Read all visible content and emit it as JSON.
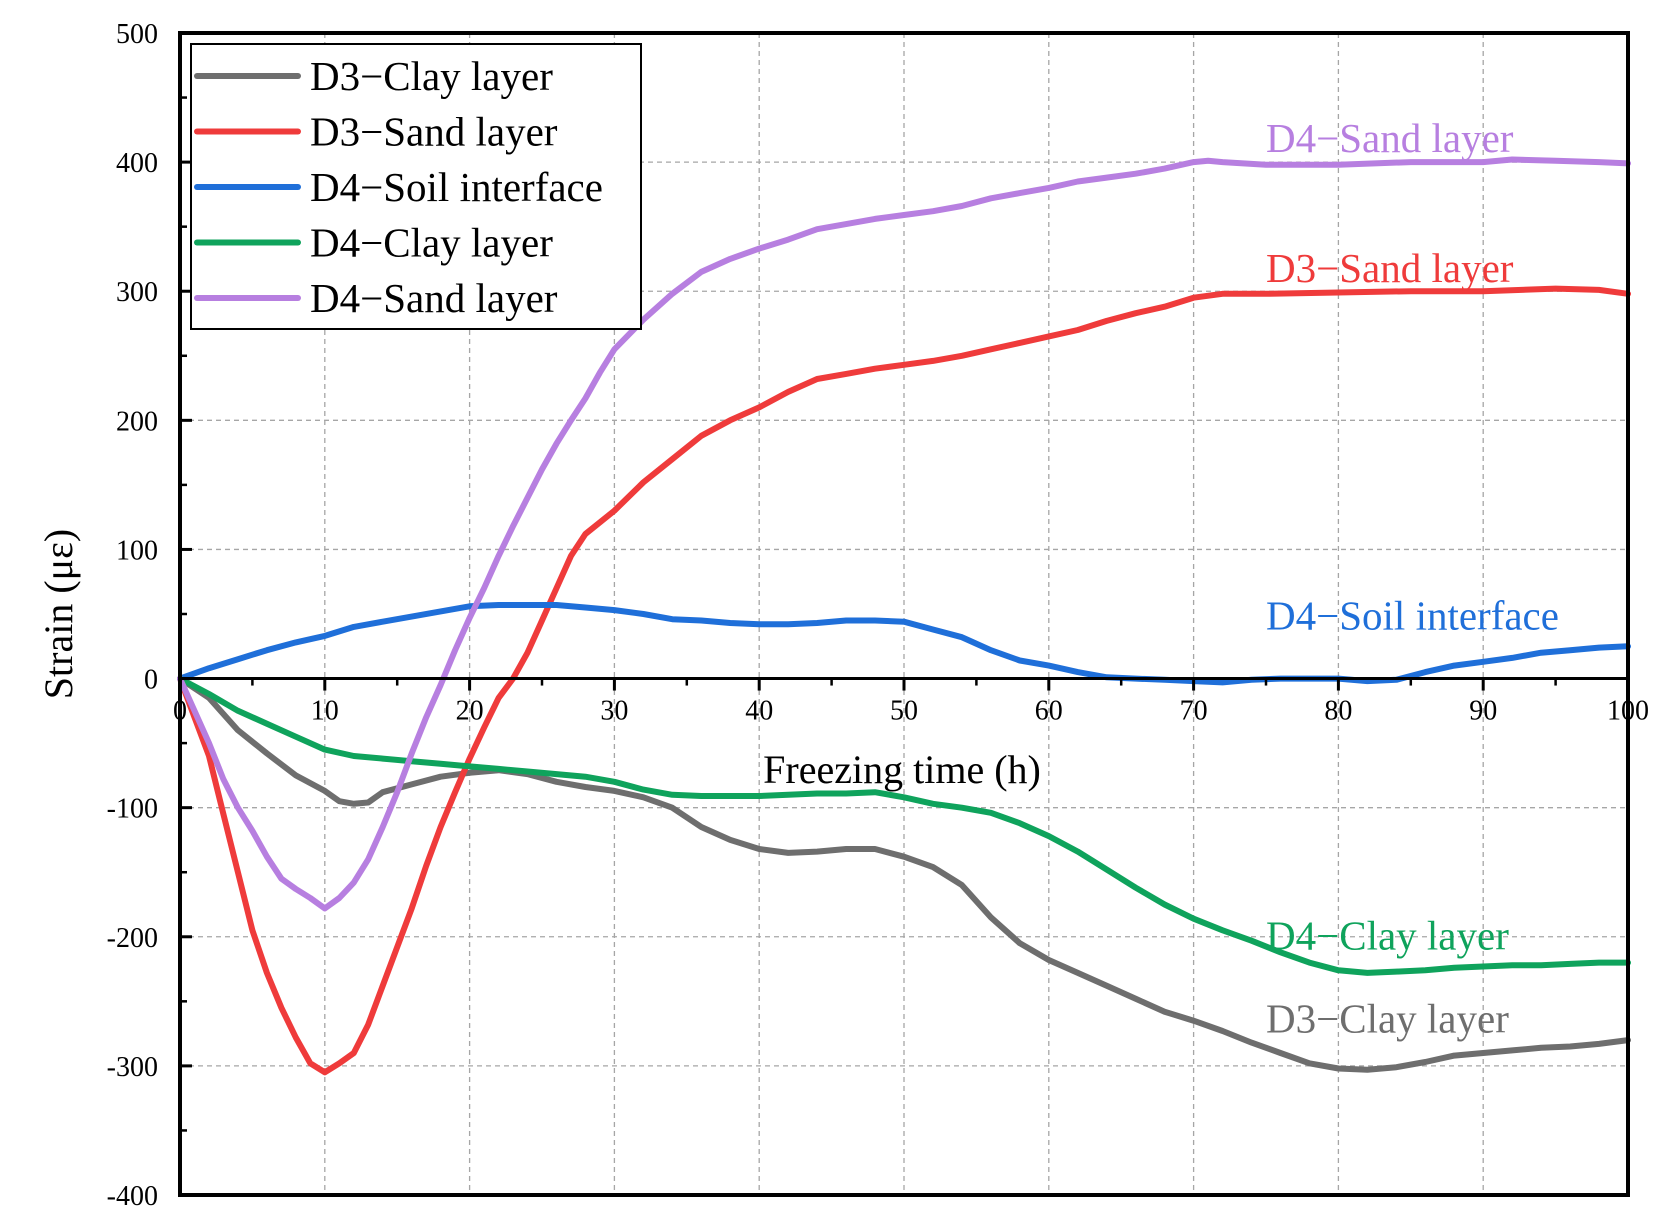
{
  "chart_data": {
    "type": "line",
    "title": "",
    "xlabel": "Freezing time (h)",
    "ylabel": "Strain (με)",
    "xlim": [
      0,
      100
    ],
    "ylim": [
      -400,
      500
    ],
    "xticks": [
      0,
      10,
      20,
      30,
      40,
      50,
      60,
      70,
      80,
      90,
      100
    ],
    "yticks": [
      -400,
      -300,
      -200,
      -100,
      0,
      100,
      200,
      300,
      400,
      500
    ],
    "xtick_labels": [
      "0",
      "10",
      "20",
      "30",
      "40",
      "50",
      "60",
      "70",
      "80",
      "90",
      "100"
    ],
    "ytick_labels": [
      "-400",
      "-300",
      "-200",
      "-100",
      "0",
      "100",
      "200",
      "300",
      "400",
      "500"
    ],
    "grid": true,
    "legend_position": "top-left",
    "series": [
      {
        "name": "D3−Clay layer",
        "color": "#6e6e6e",
        "points": [
          [
            0,
            0
          ],
          [
            2,
            -15
          ],
          [
            4,
            -40
          ],
          [
            6,
            -58
          ],
          [
            8,
            -75
          ],
          [
            10,
            -87
          ],
          [
            11,
            -95
          ],
          [
            12,
            -97
          ],
          [
            13,
            -96
          ],
          [
            14,
            -88
          ],
          [
            16,
            -82
          ],
          [
            18,
            -76
          ],
          [
            20,
            -73
          ],
          [
            22,
            -71
          ],
          [
            24,
            -74
          ],
          [
            26,
            -80
          ],
          [
            28,
            -84
          ],
          [
            30,
            -87
          ],
          [
            32,
            -92
          ],
          [
            34,
            -100
          ],
          [
            36,
            -115
          ],
          [
            38,
            -125
          ],
          [
            40,
            -132
          ],
          [
            42,
            -135
          ],
          [
            44,
            -134
          ],
          [
            46,
            -132
          ],
          [
            48,
            -132
          ],
          [
            50,
            -138
          ],
          [
            52,
            -146
          ],
          [
            54,
            -160
          ],
          [
            56,
            -185
          ],
          [
            58,
            -205
          ],
          [
            60,
            -218
          ],
          [
            62,
            -228
          ],
          [
            64,
            -238
          ],
          [
            66,
            -248
          ],
          [
            68,
            -258
          ],
          [
            70,
            -265
          ],
          [
            72,
            -273
          ],
          [
            74,
            -282
          ],
          [
            76,
            -290
          ],
          [
            78,
            -298
          ],
          [
            80,
            -302
          ],
          [
            82,
            -303
          ],
          [
            84,
            -301
          ],
          [
            86,
            -297
          ],
          [
            88,
            -292
          ],
          [
            90,
            -290
          ],
          [
            92,
            -288
          ],
          [
            94,
            -286
          ],
          [
            96,
            -285
          ],
          [
            98,
            -283
          ],
          [
            100,
            -280
          ]
        ]
      },
      {
        "name": "D3−Sand layer",
        "color": "#ef3b3b",
        "points": [
          [
            0,
            0
          ],
          [
            1,
            -30
          ],
          [
            2,
            -60
          ],
          [
            3,
            -105
          ],
          [
            4,
            -150
          ],
          [
            5,
            -195
          ],
          [
            6,
            -228
          ],
          [
            7,
            -255
          ],
          [
            8,
            -278
          ],
          [
            9,
            -298
          ],
          [
            10,
            -305
          ],
          [
            11,
            -298
          ],
          [
            12,
            -290
          ],
          [
            13,
            -268
          ],
          [
            14,
            -238
          ],
          [
            15,
            -208
          ],
          [
            16,
            -178
          ],
          [
            17,
            -145
          ],
          [
            18,
            -115
          ],
          [
            19,
            -88
          ],
          [
            20,
            -62
          ],
          [
            21,
            -38
          ],
          [
            22,
            -15
          ],
          [
            23,
            0
          ],
          [
            24,
            20
          ],
          [
            25,
            45
          ],
          [
            26,
            70
          ],
          [
            27,
            95
          ],
          [
            28,
            112
          ],
          [
            30,
            130
          ],
          [
            32,
            152
          ],
          [
            34,
            170
          ],
          [
            36,
            188
          ],
          [
            38,
            200
          ],
          [
            40,
            210
          ],
          [
            42,
            222
          ],
          [
            44,
            232
          ],
          [
            46,
            236
          ],
          [
            48,
            240
          ],
          [
            50,
            243
          ],
          [
            52,
            246
          ],
          [
            54,
            250
          ],
          [
            56,
            255
          ],
          [
            58,
            260
          ],
          [
            60,
            265
          ],
          [
            62,
            270
          ],
          [
            64,
            277
          ],
          [
            66,
            283
          ],
          [
            68,
            288
          ],
          [
            70,
            295
          ],
          [
            72,
            298
          ],
          [
            75,
            298
          ],
          [
            80,
            299
          ],
          [
            85,
            300
          ],
          [
            90,
            300
          ],
          [
            95,
            302
          ],
          [
            98,
            301
          ],
          [
            100,
            298
          ]
        ]
      },
      {
        "name": "D4−Soil interface",
        "color": "#1f6fd9",
        "points": [
          [
            0,
            0
          ],
          [
            2,
            8
          ],
          [
            4,
            15
          ],
          [
            6,
            22
          ],
          [
            8,
            28
          ],
          [
            10,
            33
          ],
          [
            12,
            40
          ],
          [
            14,
            44
          ],
          [
            16,
            48
          ],
          [
            18,
            52
          ],
          [
            20,
            56
          ],
          [
            22,
            57
          ],
          [
            24,
            57
          ],
          [
            26,
            57
          ],
          [
            28,
            55
          ],
          [
            30,
            53
          ],
          [
            32,
            50
          ],
          [
            34,
            46
          ],
          [
            36,
            45
          ],
          [
            38,
            43
          ],
          [
            40,
            42
          ],
          [
            42,
            42
          ],
          [
            44,
            43
          ],
          [
            46,
            45
          ],
          [
            48,
            45
          ],
          [
            50,
            44
          ],
          [
            52,
            38
          ],
          [
            54,
            32
          ],
          [
            56,
            22
          ],
          [
            58,
            14
          ],
          [
            60,
            10
          ],
          [
            62,
            5
          ],
          [
            64,
            1
          ],
          [
            66,
            0
          ],
          [
            68,
            -1
          ],
          [
            70,
            -2
          ],
          [
            72,
            -3
          ],
          [
            74,
            -1
          ],
          [
            76,
            0
          ],
          [
            78,
            0
          ],
          [
            80,
            0
          ],
          [
            82,
            -2
          ],
          [
            84,
            -1
          ],
          [
            86,
            5
          ],
          [
            88,
            10
          ],
          [
            90,
            13
          ],
          [
            92,
            16
          ],
          [
            94,
            20
          ],
          [
            96,
            22
          ],
          [
            98,
            24
          ],
          [
            100,
            25
          ]
        ]
      },
      {
        "name": "D4−Clay layer",
        "color": "#0fa35c",
        "points": [
          [
            0,
            0
          ],
          [
            2,
            -12
          ],
          [
            4,
            -25
          ],
          [
            6,
            -35
          ],
          [
            8,
            -45
          ],
          [
            10,
            -55
          ],
          [
            12,
            -60
          ],
          [
            14,
            -62
          ],
          [
            16,
            -64
          ],
          [
            18,
            -66
          ],
          [
            20,
            -68
          ],
          [
            22,
            -70
          ],
          [
            24,
            -72
          ],
          [
            26,
            -74
          ],
          [
            28,
            -76
          ],
          [
            30,
            -80
          ],
          [
            32,
            -86
          ],
          [
            34,
            -90
          ],
          [
            36,
            -91
          ],
          [
            38,
            -91
          ],
          [
            40,
            -91
          ],
          [
            42,
            -90
          ],
          [
            44,
            -89
          ],
          [
            46,
            -89
          ],
          [
            48,
            -88
          ],
          [
            50,
            -92
          ],
          [
            52,
            -97
          ],
          [
            54,
            -100
          ],
          [
            56,
            -104
          ],
          [
            58,
            -112
          ],
          [
            60,
            -122
          ],
          [
            62,
            -134
          ],
          [
            64,
            -148
          ],
          [
            66,
            -162
          ],
          [
            68,
            -175
          ],
          [
            70,
            -186
          ],
          [
            72,
            -195
          ],
          [
            74,
            -203
          ],
          [
            76,
            -212
          ],
          [
            78,
            -220
          ],
          [
            80,
            -226
          ],
          [
            82,
            -228
          ],
          [
            84,
            -227
          ],
          [
            86,
            -226
          ],
          [
            88,
            -224
          ],
          [
            90,
            -223
          ],
          [
            92,
            -222
          ],
          [
            94,
            -222
          ],
          [
            96,
            -221
          ],
          [
            98,
            -220
          ],
          [
            100,
            -220
          ]
        ]
      },
      {
        "name": "D4−Sand layer",
        "color": "#b77fe0",
        "points": [
          [
            0,
            0
          ],
          [
            1,
            -25
          ],
          [
            2,
            -50
          ],
          [
            3,
            -78
          ],
          [
            4,
            -100
          ],
          [
            5,
            -118
          ],
          [
            6,
            -138
          ],
          [
            7,
            -155
          ],
          [
            8,
            -163
          ],
          [
            9,
            -170
          ],
          [
            10,
            -178
          ],
          [
            11,
            -170
          ],
          [
            12,
            -158
          ],
          [
            13,
            -140
          ],
          [
            14,
            -115
          ],
          [
            15,
            -88
          ],
          [
            16,
            -58
          ],
          [
            17,
            -30
          ],
          [
            18,
            -5
          ],
          [
            19,
            22
          ],
          [
            20,
            47
          ],
          [
            21,
            70
          ],
          [
            22,
            95
          ],
          [
            23,
            118
          ],
          [
            24,
            140
          ],
          [
            25,
            162
          ],
          [
            26,
            182
          ],
          [
            27,
            200
          ],
          [
            28,
            217
          ],
          [
            29,
            237
          ],
          [
            30,
            255
          ],
          [
            32,
            278
          ],
          [
            34,
            298
          ],
          [
            36,
            315
          ],
          [
            38,
            325
          ],
          [
            40,
            333
          ],
          [
            42,
            340
          ],
          [
            44,
            348
          ],
          [
            46,
            352
          ],
          [
            48,
            356
          ],
          [
            50,
            359
          ],
          [
            52,
            362
          ],
          [
            54,
            366
          ],
          [
            56,
            372
          ],
          [
            58,
            376
          ],
          [
            60,
            380
          ],
          [
            62,
            385
          ],
          [
            64,
            388
          ],
          [
            66,
            391
          ],
          [
            68,
            395
          ],
          [
            70,
            400
          ],
          [
            71,
            401
          ],
          [
            72,
            400
          ],
          [
            75,
            398
          ],
          [
            80,
            398
          ],
          [
            85,
            400
          ],
          [
            90,
            400
          ],
          [
            92,
            402
          ],
          [
            95,
            401
          ],
          [
            98,
            400
          ],
          [
            100,
            399
          ]
        ]
      }
    ],
    "annotations": [
      {
        "text": "D4−Sand layer",
        "series": "D4−Sand layer",
        "x": 75,
        "y": 408
      },
      {
        "text": "D3−Sand layer",
        "series": "D3−Sand layer",
        "x": 75,
        "y": 307
      },
      {
        "text": "D4−Soil interface",
        "series": "D4−Soil interface",
        "x": 75,
        "y": 38
      },
      {
        "text": "D4−Clay layer",
        "series": "D4−Clay layer",
        "x": 75,
        "y": -210
      },
      {
        "text": "D3−Clay layer",
        "series": "D3−Clay layer",
        "x": 75,
        "y": -274
      }
    ]
  }
}
